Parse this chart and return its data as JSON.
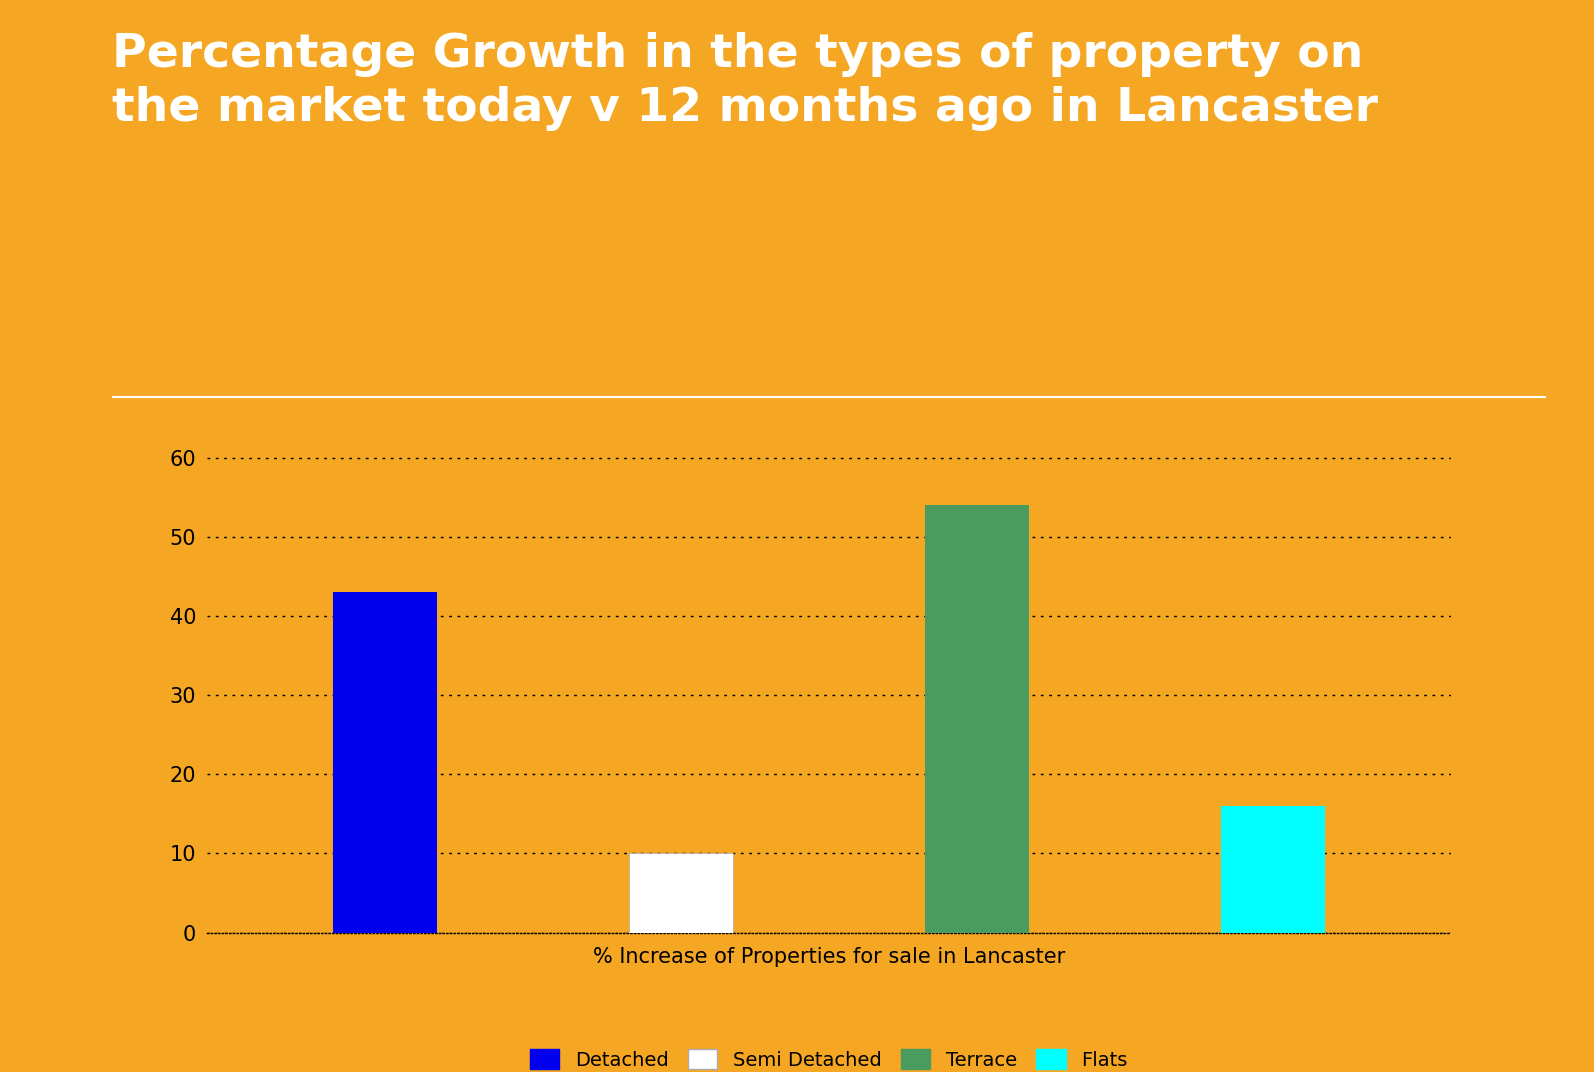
{
  "title": "Percentage Growth in the types of property on\nthe market today v 12 months ago in Lancaster",
  "categories": [
    "Detached",
    "Semi Detached",
    "Terrace",
    "Flats"
  ],
  "values": [
    43,
    10,
    54,
    16
  ],
  "bar_colors": [
    "#0000EE",
    "#FFFFFF",
    "#4A9B5F",
    "#00FFFF"
  ],
  "xlabel": "% Increase of Properties for sale in Lancaster",
  "ylabel": "",
  "ylim": [
    0,
    65
  ],
  "yticks": [
    0,
    10,
    20,
    30,
    40,
    50,
    60
  ],
  "background_color": "#F5A623",
  "title_color": "#FFFFFF",
  "title_fontsize": 34,
  "xlabel_fontsize": 15,
  "tick_fontsize": 15,
  "legend_fontsize": 14,
  "separator_color": "#FFFFFF",
  "grid_color": "#000000",
  "bar_width": 0.35
}
